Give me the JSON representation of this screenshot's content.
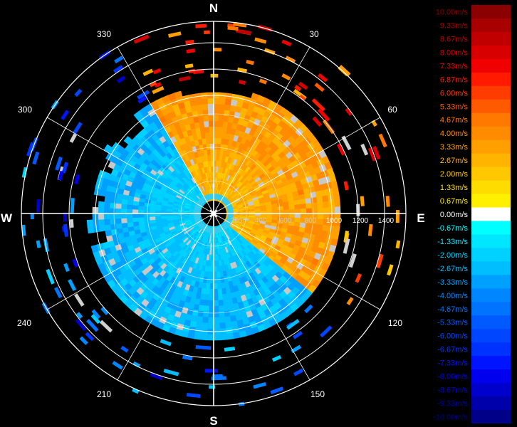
{
  "chart_data": {
    "type": "heatmap",
    "projection": "polar",
    "title": "",
    "cardinal_labels": [
      "N",
      "E",
      "S",
      "W"
    ],
    "angle_tick_labels": [
      "30",
      "60",
      "120",
      "150",
      "210",
      "240",
      "300",
      "330"
    ],
    "range_tick_labels": [
      "200",
      "400",
      "600",
      "800",
      "1000",
      "1200",
      "1400"
    ],
    "range_ticks": [
      200,
      400,
      600,
      800,
      1000,
      1200,
      1400
    ],
    "range_max": 1400,
    "data_range_max": 850,
    "grid": true,
    "legend": {
      "placement": "right",
      "labels": [
        "10.00m/s",
        "9.33m/s",
        "8.67m/s",
        "8.00m/s",
        "7.33m/s",
        "6.87m/s",
        "6.00m/s",
        "5.33m/s",
        "4.67m/s",
        "4.00m/s",
        "3.33m/s",
        "2.67m/s",
        "2.00m/s",
        "1.33m/s",
        "0.67m/s",
        "0.00m/s",
        "-0.67m/s",
        "-1.33m/s",
        "-2.00m/s",
        "-2.67m/s",
        "-3.33m/s",
        "-4.00m/s",
        "-4.67m/s",
        "-5.33m/s",
        "-6.00m/s",
        "-6.67m/s",
        "-7.33m/s",
        "-8.00m/s",
        "-8.67m/s",
        "-9.33m/s",
        "-10.00m/s"
      ],
      "colors": [
        "#8b0000",
        "#a80000",
        "#c00000",
        "#d80000",
        "#f00000",
        "#ff1a00",
        "#ff3c00",
        "#ff5a00",
        "#ff7800",
        "#ff8c00",
        "#ffa000",
        "#ffb400",
        "#ffc800",
        "#ffdc00",
        "#fff000",
        "#ffffff",
        "#00ffff",
        "#00e6ff",
        "#00d2ff",
        "#00beff",
        "#00a0ff",
        "#0087ff",
        "#0073ff",
        "#005aff",
        "#0046ff",
        "#0032ff",
        "#0014ff",
        "#0000ee",
        "#0000cc",
        "#0000aa",
        "#000088"
      ]
    },
    "summary": {
      "approaching_sector_deg": [
        130,
        330
      ],
      "receding_sector_deg": [
        330,
        130
      ],
      "typical_receding_speed": 3.5,
      "typical_approaching_speed": -2.8
    }
  }
}
